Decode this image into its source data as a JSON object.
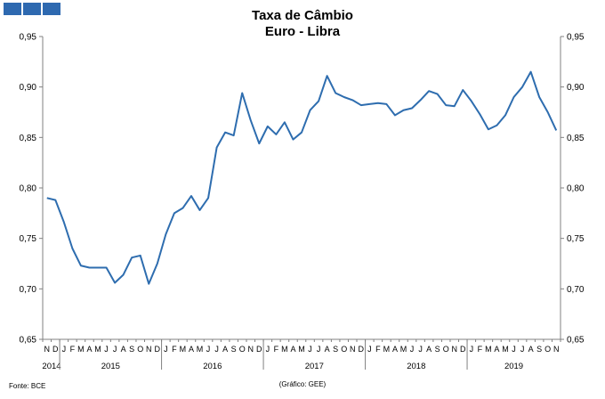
{
  "header": {
    "title_line1": "Taxa de Câmbio",
    "title_line2": "Euro - Libra"
  },
  "footer": {
    "source": "Fonte: BCE",
    "credit": "(Gráfico: GEE)"
  },
  "colors": {
    "line": "#2e6daf",
    "logo": "#2e69b0",
    "axis": "#808080"
  },
  "chart_data": {
    "type": "line",
    "title": "Taxa de Câmbio\nEuro - Libra",
    "ylim": [
      0.65,
      0.95
    ],
    "y_ticks": [
      "0,65",
      "0,70",
      "0,75",
      "0,80",
      "0,85",
      "0,90",
      "0,95"
    ],
    "y_tick_values": [
      0.65,
      0.7,
      0.75,
      0.8,
      0.85,
      0.9,
      0.95
    ],
    "grid": false,
    "month_labels": [
      "N",
      "D",
      "J",
      "F",
      "M",
      "A",
      "M",
      "J",
      "J",
      "A",
      "S",
      "O",
      "N",
      "D",
      "J",
      "F",
      "M",
      "A",
      "M",
      "J",
      "J",
      "A",
      "S",
      "O",
      "N",
      "D",
      "J",
      "F",
      "M",
      "A",
      "M",
      "J",
      "J",
      "A",
      "S",
      "O",
      "N",
      "D",
      "J",
      "F",
      "M",
      "A",
      "M",
      "J",
      "J",
      "A",
      "S",
      "O",
      "N",
      "D",
      "J",
      "F",
      "M",
      "A",
      "M",
      "J",
      "J",
      "A",
      "S",
      "O",
      "N"
    ],
    "year_labels": [
      {
        "label": "2014",
        "start": 0,
        "count": 2
      },
      {
        "label": "2015",
        "start": 2,
        "count": 12
      },
      {
        "label": "2016",
        "start": 14,
        "count": 12
      },
      {
        "label": "2017",
        "start": 26,
        "count": 12
      },
      {
        "label": "2018",
        "start": 38,
        "count": 12
      },
      {
        "label": "2019",
        "start": 50,
        "count": 11
      }
    ],
    "series": [
      {
        "values": [
          0.79,
          0.788,
          0.766,
          0.74,
          0.723,
          0.721,
          0.721,
          0.721,
          0.706,
          0.714,
          0.731,
          0.733,
          0.705,
          0.725,
          0.754,
          0.775,
          0.78,
          0.792,
          0.778,
          0.79,
          0.84,
          0.855,
          0.852,
          0.894,
          0.867,
          0.844,
          0.861,
          0.853,
          0.865,
          0.848,
          0.855,
          0.877,
          0.886,
          0.911,
          0.894,
          0.89,
          0.887,
          0.882,
          0.883,
          0.884,
          0.883,
          0.872,
          0.877,
          0.879,
          0.887,
          0.896,
          0.893,
          0.882,
          0.881,
          0.897,
          0.886,
          0.873,
          0.858,
          0.862,
          0.872,
          0.89,
          0.9,
          0.915,
          0.89,
          0.875,
          0.857
        ]
      }
    ]
  }
}
